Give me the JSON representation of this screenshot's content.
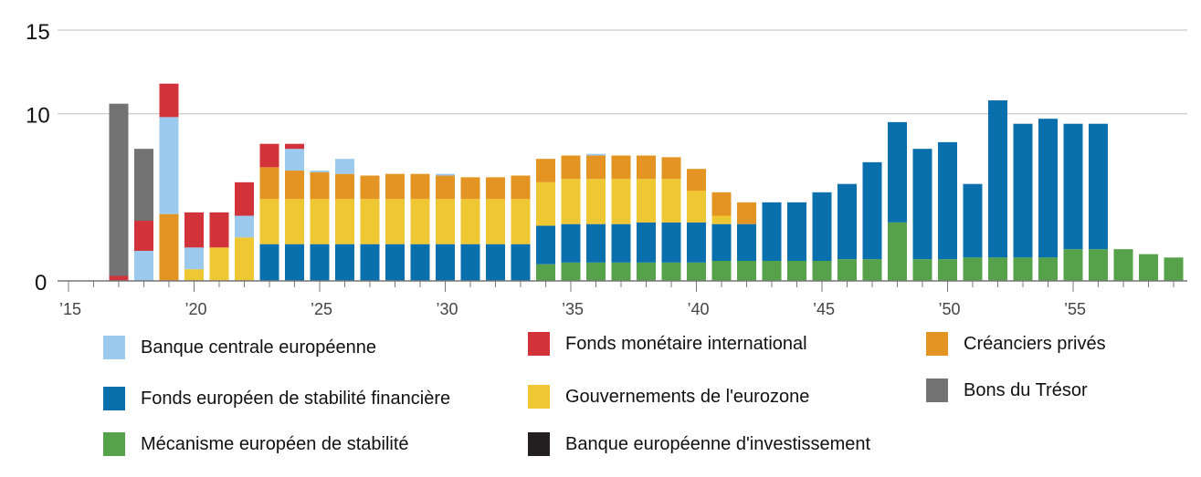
{
  "chart_data": {
    "type": "bar",
    "stacked": true,
    "x": [
      2017,
      2018,
      2019,
      2020,
      2021,
      2022,
      2023,
      2024,
      2025,
      2026,
      2027,
      2028,
      2029,
      2030,
      2031,
      2032,
      2033,
      2034,
      2035,
      2036,
      2037,
      2038,
      2039,
      2040,
      2041,
      2042,
      2043,
      2044,
      2045,
      2046,
      2047,
      2048,
      2049,
      2050,
      2051,
      2052,
      2053,
      2054,
      2055,
      2056,
      2057,
      2058,
      2059
    ],
    "x_ticks": [
      {
        "value": 2015,
        "label": "’15"
      },
      {
        "value": 2020,
        "label": "’20"
      },
      {
        "value": 2025,
        "label": "’25"
      },
      {
        "value": 2030,
        "label": "’30"
      },
      {
        "value": 2035,
        "label": "’35"
      },
      {
        "value": 2040,
        "label": "’40"
      },
      {
        "value": 2045,
        "label": "’45"
      },
      {
        "value": 2050,
        "label": "’50"
      },
      {
        "value": 2055,
        "label": "’55"
      }
    ],
    "xlim": [
      2015,
      2059.5
    ],
    "ylim": [
      0,
      15
    ],
    "y_ticks": [
      {
        "value": 0,
        "label": "0"
      },
      {
        "value": 10,
        "label": "10"
      },
      {
        "value": 15,
        "label": "15"
      }
    ],
    "grid": true,
    "title": "",
    "xlabel": "",
    "ylabel": "",
    "legend_placement": "bottom",
    "series": [
      {
        "name": "Mécanisme européen de stabilité",
        "color": "#55a24a",
        "values": [
          0,
          0,
          0,
          0,
          0,
          0,
          0,
          0,
          0,
          0,
          0,
          0,
          0,
          0,
          0,
          0,
          0,
          1,
          1.1,
          1.1,
          1.1,
          1.1,
          1.1,
          1.1,
          1.2,
          1.2,
          1.2,
          1.2,
          1.2,
          1.3,
          1.3,
          3.5,
          1.3,
          1.3,
          1.4,
          1.4,
          1.4,
          1.4,
          1.9,
          1.9,
          1.9,
          1.6,
          1.4
        ]
      },
      {
        "name": "Fonds européen de stabilité financière",
        "color": "#0a70ad",
        "values": [
          0,
          0,
          0,
          0,
          0,
          0,
          2.2,
          2.2,
          2.2,
          2.2,
          2.2,
          2.2,
          2.2,
          2.2,
          2.2,
          2.2,
          2.2,
          2.3,
          2.3,
          2.3,
          2.3,
          2.4,
          2.4,
          2.4,
          2.2,
          2.2,
          3.5,
          3.5,
          4.1,
          4.5,
          5.8,
          6.0,
          6.6,
          7.0,
          4.4,
          9.4,
          8.0,
          8.3,
          7.5,
          7.5,
          0,
          0,
          0
        ]
      },
      {
        "name": "Gouvernements de l'eurozone",
        "color": "#efc732",
        "values": [
          0,
          0,
          0,
          0.7,
          2.0,
          2.6,
          2.7,
          2.7,
          2.7,
          2.7,
          2.7,
          2.7,
          2.7,
          2.7,
          2.7,
          2.7,
          2.7,
          2.6,
          2.7,
          2.7,
          2.7,
          2.6,
          2.6,
          1.9,
          0.5,
          0,
          0,
          0,
          0,
          0,
          0,
          0,
          0,
          0,
          0,
          0,
          0,
          0,
          0,
          0,
          0,
          0,
          0
        ]
      },
      {
        "name": "Créanciers privés",
        "color": "#e39422",
        "values": [
          0,
          0,
          4.0,
          0,
          0,
          0,
          1.9,
          1.7,
          1.6,
          1.5,
          1.4,
          1.5,
          1.5,
          1.4,
          1.3,
          1.3,
          1.4,
          1.4,
          1.4,
          1.4,
          1.4,
          1.4,
          1.3,
          1.3,
          1.4,
          1.3,
          0,
          0,
          0,
          0,
          0,
          0,
          0,
          0,
          0,
          0,
          0,
          0,
          0,
          0,
          0,
          0,
          0
        ]
      },
      {
        "name": "Banque centrale européenne",
        "color": "#9cc9ee",
        "values": [
          0,
          1.8,
          5.8,
          1.3,
          0,
          1.3,
          0,
          1.3,
          0.1,
          0.9,
          0,
          0,
          0,
          0.1,
          0,
          0,
          0,
          0,
          0,
          0.1,
          0,
          0,
          0,
          0,
          0,
          0,
          0,
          0,
          0,
          0,
          0,
          0,
          0,
          0,
          0,
          0,
          0,
          0,
          0,
          0,
          0,
          0,
          0
        ]
      },
      {
        "name": "Fonds monétaire international",
        "color": "#d2333b",
        "values": [
          0.3,
          1.8,
          2.0,
          2.1,
          2.1,
          2.0,
          1.4,
          0.3,
          0,
          0,
          0,
          0,
          0,
          0,
          0,
          0,
          0,
          0,
          0,
          0,
          0,
          0,
          0,
          0,
          0,
          0,
          0,
          0,
          0,
          0,
          0,
          0,
          0,
          0,
          0,
          0,
          0,
          0,
          0,
          0,
          0,
          0,
          0
        ]
      },
      {
        "name": "Bons du Trésor",
        "color": "#737373",
        "values": [
          10.3,
          4.3,
          0,
          0,
          0,
          0,
          0,
          0,
          0,
          0,
          0,
          0,
          0,
          0,
          0,
          0,
          0,
          0,
          0,
          0,
          0,
          0,
          0,
          0,
          0,
          0,
          0,
          0,
          0,
          0,
          0,
          0,
          0,
          0,
          0,
          0,
          0,
          0,
          0,
          0,
          0,
          0,
          0
        ]
      },
      {
        "name": "Banque européenne d'investissement",
        "color": "#231f20",
        "values": [
          0,
          0,
          0,
          0,
          0,
          0,
          0,
          0,
          0,
          0,
          0,
          0,
          0,
          0,
          0,
          0,
          0,
          0,
          0,
          0,
          0,
          0,
          0,
          0,
          0,
          0,
          0,
          0,
          0,
          0,
          0,
          0,
          0,
          0,
          0,
          0,
          0,
          0,
          0,
          0,
          0,
          0,
          0
        ]
      }
    ]
  },
  "legend": [
    {
      "label": "Banque centrale européenne",
      "color": "#9cc9ee"
    },
    {
      "label": "Fonds monétaire international",
      "color": "#d2333b"
    },
    {
      "label": "Créanciers privés",
      "color": "#e39422"
    },
    {
      "label": "Fonds européen de stabilité financière",
      "color": "#0a70ad"
    },
    {
      "label": "Gouvernements de l'eurozone",
      "color": "#efc732"
    },
    {
      "label": "Bons du Trésor",
      "color": "#737373"
    },
    {
      "label": "Mécanisme européen de stabilité",
      "color": "#55a24a"
    },
    {
      "label": "Banque européenne d'investissement",
      "color": "#231f20"
    }
  ]
}
